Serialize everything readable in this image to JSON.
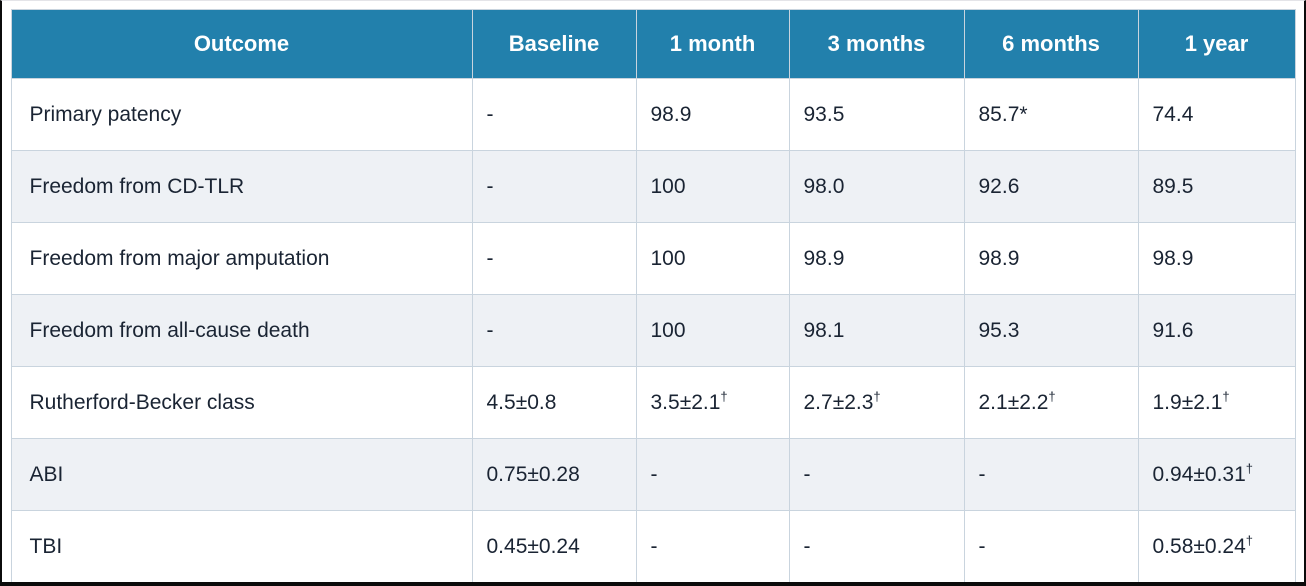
{
  "table": {
    "name": "clinical-outcomes-over-time",
    "columns": [
      "Outcome",
      "Baseline",
      "1 month",
      "3 months",
      "6 months",
      "1 year"
    ],
    "rows": [
      {
        "label": "Primary patency",
        "cells": [
          {
            "v": "-"
          },
          {
            "v": "98.9"
          },
          {
            "v": "93.5"
          },
          {
            "v": "85.7*"
          },
          {
            "v": "74.4"
          }
        ]
      },
      {
        "label": "Freedom from CD-TLR",
        "cells": [
          {
            "v": "-"
          },
          {
            "v": "100"
          },
          {
            "v": "98.0"
          },
          {
            "v": "92.6"
          },
          {
            "v": "89.5"
          }
        ]
      },
      {
        "label": "Freedom from major amputation",
        "cells": [
          {
            "v": "-"
          },
          {
            "v": "100"
          },
          {
            "v": "98.9"
          },
          {
            "v": "98.9"
          },
          {
            "v": "98.9"
          }
        ]
      },
      {
        "label": "Freedom from all-cause death",
        "cells": [
          {
            "v": "-"
          },
          {
            "v": "100"
          },
          {
            "v": "98.1"
          },
          {
            "v": "95.3"
          },
          {
            "v": "91.6"
          }
        ]
      },
      {
        "label": "Rutherford-Becker class",
        "cells": [
          {
            "v": "4.5±0.8"
          },
          {
            "v": "3.5±2.1",
            "sup": "†"
          },
          {
            "v": "2.7±2.3",
            "sup": "†"
          },
          {
            "v": "2.1±2.2",
            "sup": "†"
          },
          {
            "v": "1.9±2.1",
            "sup": "†"
          }
        ]
      },
      {
        "label": "ABI",
        "cells": [
          {
            "v": "0.75±0.28"
          },
          {
            "v": "-"
          },
          {
            "v": "-"
          },
          {
            "v": "-"
          },
          {
            "v": "0.94±0.31",
            "sup": "†"
          }
        ]
      },
      {
        "label": "TBI",
        "cells": [
          {
            "v": "0.45±0.24"
          },
          {
            "v": "-"
          },
          {
            "v": "-"
          },
          {
            "v": "-"
          },
          {
            "v": "0.58±0.24",
            "sup": "†"
          }
        ]
      }
    ],
    "footnote_markers": [
      "*",
      "†"
    ]
  },
  "colors": {
    "header_bg": "#2280ac",
    "header_text": "#ffffff",
    "alt_row_bg": "#eef1f5",
    "grid": "#c9d4de",
    "text": "#1a2433",
    "frame_border": "#0b0b0b"
  }
}
